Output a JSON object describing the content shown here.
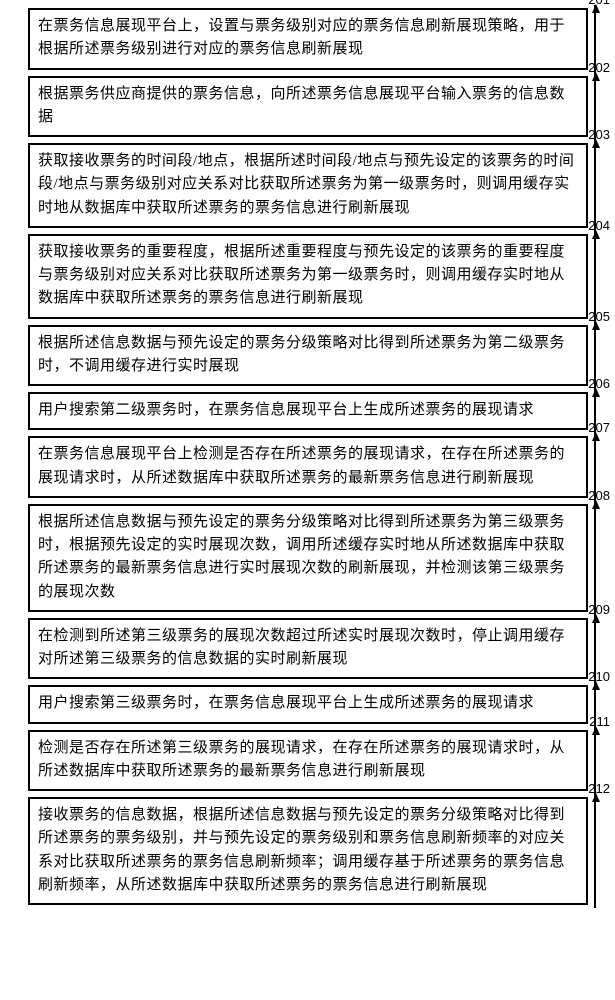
{
  "flowchart": {
    "type": "flowchart",
    "background_color": "#ffffff",
    "box_border_color": "#000000",
    "box_border_width": 2,
    "text_color": "#000000",
    "text_fontsize": 15,
    "label_fontsize": 13,
    "connector_color": "#000000",
    "steps": [
      {
        "id": "201",
        "text": "在票务信息展现平台上，设置与票务级别对应的票务信息刷新展现策略，用于根据所述票务级别进行对应的票务信息刷新展现"
      },
      {
        "id": "202",
        "text": "根据票务供应商提供的票务信息，向所述票务信息展现平台输入票务的信息数据"
      },
      {
        "id": "203",
        "text": "获取接收票务的时间段/地点，根据所述时间段/地点与预先设定的该票务的时间段/地点与票务级别对应关系对比获取所述票务为第一级票务时，则调用缓存实时地从数据库中获取所述票务的票务信息进行刷新展现"
      },
      {
        "id": "204",
        "text": "获取接收票务的重要程度，根据所述重要程度与预先设定的该票务的重要程度与票务级别对应关系对比获取所述票务为第一级票务时，则调用缓存实时地从数据库中获取所述票务的票务信息进行刷新展现"
      },
      {
        "id": "205",
        "text": "根据所述信息数据与预先设定的票务分级策略对比得到所述票务为第二级票务时，不调用缓存进行实时展现"
      },
      {
        "id": "206",
        "text": "用户搜索第二级票务时，在票务信息展现平台上生成所述票务的展现请求"
      },
      {
        "id": "207",
        "text": "在票务信息展现平台上检测是否存在所述票务的展现请求，在存在所述票务的展现请求时，从所述数据库中获取所述票务的最新票务信息进行刷新展现"
      },
      {
        "id": "208",
        "text": "根据所述信息数据与预先设定的票务分级策略对比得到所述票务为第三级票务时，根据预先设定的实时展现次数，调用所述缓存实时地从所述数据库中获取所述票务的最新票务信息进行实时展现次数的刷新展现，并检测该第三级票务的展现次数"
      },
      {
        "id": "209",
        "text": "在检测到所述第三级票务的展现次数超过所述实时展现次数时，停止调用缓存对所述第三级票务的信息数据的实时刷新展现"
      },
      {
        "id": "210",
        "text": "用户搜索第三级票务时，在票务信息展现平台上生成所述票务的展现请求"
      },
      {
        "id": "211",
        "text": "检测是否存在所述第三级票务的展现请求，在存在所述票务的展现请求时，从所述数据库中获取所述票务的最新票务信息进行刷新展现"
      },
      {
        "id": "212",
        "text": "接收票务的信息数据，根据所述信息数据与预先设定的票务分级策略对比得到所述票务的票务级别，并与预先设定的票务级别和票务信息刷新频率的对应关系对比获取所述票务的票务信息刷新频率；调用缓存基于所述票务的票务信息刷新频率，从所述数据库中获取所述票务的票务信息进行刷新展现"
      }
    ]
  }
}
